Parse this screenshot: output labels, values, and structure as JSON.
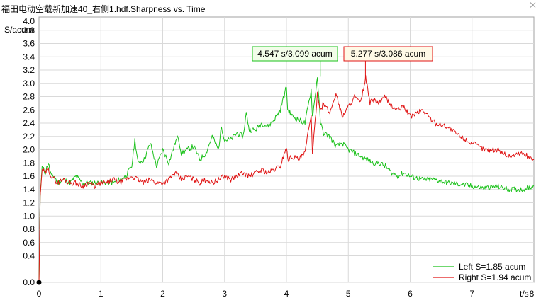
{
  "window": {
    "title": "福田电动空载新加速40_右侧1.hdf.Sharpness vs. Time"
  },
  "colors": {
    "left": "#19c119",
    "right": "#e01414",
    "grid": "#d9d9d9",
    "left_ann_bg": "#f2fde9",
    "right_ann_bg": "#fff9e6"
  },
  "chart_data": {
    "type": "line",
    "ylabel": "S/acum",
    "xlabel": "t/s",
    "xlim": [
      0,
      8
    ],
    "ylim": [
      0,
      4
    ],
    "x_ticks": [
      0,
      1,
      2,
      3,
      4,
      5,
      6,
      7,
      8
    ],
    "y_ticks": [
      0.0,
      0.4,
      0.6,
      0.8,
      1.0,
      1.2,
      1.4,
      1.6,
      1.8,
      2.0,
      2.2,
      2.4,
      2.6,
      2.8,
      3.0,
      3.2,
      3.4,
      3.6,
      3.8
    ],
    "y_tick_labels": [
      "0.0",
      "0.4",
      "0.6",
      "0.8",
      "1.0",
      "1.2",
      "1.4",
      "1.6",
      "1.8",
      "2.0",
      "2.2",
      "2.4",
      "2.6",
      "2.8",
      "3.0",
      "3.2",
      "3.4",
      "3.6",
      "3.8"
    ],
    "y_top_label": "4.0",
    "grid": true,
    "legend_position": "bottom-right",
    "series": [
      {
        "name": "Left S=1.85 acum",
        "key": "left",
        "x": [
          0,
          0.02,
          0.05,
          0.1,
          0.15,
          0.2,
          0.25,
          0.3,
          0.4,
          0.5,
          0.6,
          0.7,
          0.8,
          0.9,
          1.0,
          1.1,
          1.2,
          1.3,
          1.4,
          1.5,
          1.55,
          1.6,
          1.7,
          1.8,
          1.9,
          2.0,
          2.1,
          2.2,
          2.25,
          2.3,
          2.4,
          2.5,
          2.6,
          2.7,
          2.8,
          2.9,
          2.95,
          3.0,
          3.1,
          3.2,
          3.3,
          3.35,
          3.4,
          3.5,
          3.6,
          3.7,
          3.8,
          3.9,
          4.0,
          4.02,
          4.1,
          4.2,
          4.3,
          4.4,
          4.42,
          4.45,
          4.5,
          4.55,
          4.6,
          4.7,
          4.8,
          4.9,
          5.0,
          5.1,
          5.2,
          5.3,
          5.4,
          5.5,
          5.6,
          5.7,
          5.8,
          5.9,
          6.0,
          6.2,
          6.4,
          6.6,
          6.8,
          7.0,
          7.2,
          7.4,
          7.6,
          7.8,
          8.0
        ],
        "y": [
          0.0,
          1.3,
          1.75,
          1.65,
          1.8,
          1.6,
          1.6,
          1.5,
          1.55,
          1.5,
          1.6,
          1.5,
          1.5,
          1.5,
          1.5,
          1.5,
          1.5,
          1.55,
          1.6,
          1.75,
          2.15,
          1.8,
          1.85,
          2.1,
          1.75,
          2.0,
          1.8,
          2.1,
          2.2,
          1.95,
          2.0,
          2.05,
          1.85,
          1.95,
          2.2,
          2.0,
          2.35,
          2.15,
          2.15,
          2.25,
          2.2,
          2.55,
          2.3,
          2.3,
          2.4,
          2.35,
          2.45,
          2.6,
          2.95,
          2.6,
          2.5,
          2.45,
          2.4,
          2.9,
          2.5,
          2.7,
          3.1,
          2.4,
          2.25,
          2.2,
          2.05,
          2.1,
          2.0,
          1.95,
          1.9,
          1.85,
          1.8,
          1.8,
          1.75,
          1.65,
          1.6,
          1.65,
          1.6,
          1.55,
          1.55,
          1.5,
          1.48,
          1.45,
          1.42,
          1.45,
          1.4,
          1.4,
          1.45
        ]
      },
      {
        "name": "Right S=1.94 acum",
        "key": "right",
        "x": [
          0,
          0.02,
          0.05,
          0.1,
          0.15,
          0.2,
          0.25,
          0.3,
          0.4,
          0.5,
          0.6,
          0.7,
          0.8,
          0.9,
          1.0,
          1.1,
          1.2,
          1.3,
          1.4,
          1.5,
          1.6,
          1.7,
          1.8,
          1.9,
          2.0,
          2.1,
          2.2,
          2.3,
          2.4,
          2.5,
          2.6,
          2.7,
          2.8,
          2.9,
          3.0,
          3.1,
          3.2,
          3.3,
          3.4,
          3.5,
          3.6,
          3.7,
          3.8,
          3.9,
          4.0,
          4.02,
          4.1,
          4.2,
          4.3,
          4.4,
          4.42,
          4.5,
          4.55,
          4.6,
          4.7,
          4.8,
          4.9,
          5.0,
          5.1,
          5.2,
          5.28,
          5.35,
          5.4,
          5.5,
          5.6,
          5.7,
          5.8,
          5.9,
          6.0,
          6.2,
          6.4,
          6.6,
          6.8,
          7.0,
          7.2,
          7.4,
          7.6,
          7.8,
          8.0
        ],
        "y": [
          0.0,
          1.3,
          1.7,
          1.65,
          1.7,
          1.6,
          1.55,
          1.5,
          1.55,
          1.5,
          1.5,
          1.45,
          1.5,
          1.45,
          1.5,
          1.5,
          1.55,
          1.5,
          1.55,
          1.6,
          1.55,
          1.5,
          1.55,
          1.5,
          1.5,
          1.55,
          1.65,
          1.55,
          1.6,
          1.55,
          1.5,
          1.55,
          1.5,
          1.55,
          1.6,
          1.55,
          1.6,
          1.65,
          1.6,
          1.65,
          1.7,
          1.65,
          1.7,
          1.75,
          2.05,
          1.85,
          1.9,
          1.85,
          1.95,
          2.55,
          1.9,
          2.85,
          2.6,
          2.7,
          2.55,
          2.85,
          2.5,
          2.65,
          2.8,
          2.7,
          3.09,
          2.7,
          2.75,
          2.7,
          2.8,
          2.65,
          2.6,
          2.65,
          2.5,
          2.6,
          2.4,
          2.35,
          2.2,
          2.1,
          2.0,
          2.0,
          1.9,
          1.95,
          1.85
        ]
      }
    ],
    "annotations": [
      {
        "series": "left",
        "label": "4.547 s/3.099 acum",
        "x": 4.547,
        "y": 3.099
      },
      {
        "series": "right",
        "label": "5.277 s/3.086 acum",
        "x": 5.277,
        "y": 3.086
      }
    ],
    "legend": {
      "left": "Left S=1.85 acum",
      "right": "Right S=1.94 acum"
    }
  }
}
